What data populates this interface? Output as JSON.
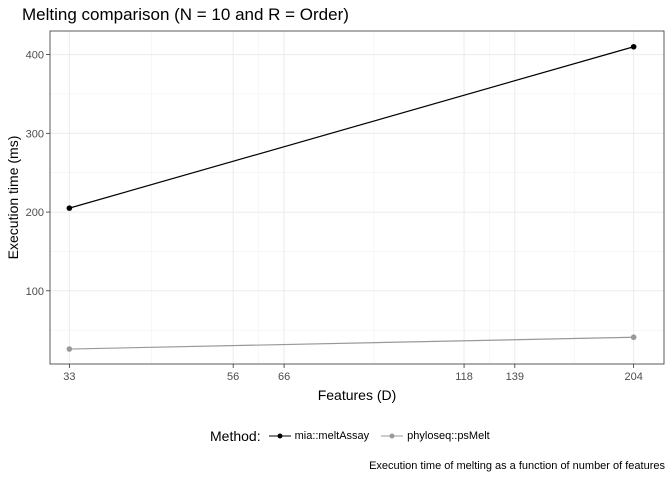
{
  "chart_data": {
    "type": "line",
    "title": "Melting comparison (N = 10 and R = Order)",
    "xlabel": "Features (D)",
    "ylabel": "Execution time (ms)",
    "x_scale": "log",
    "x_ticks": [
      33,
      56,
      66,
      118,
      139,
      204
    ],
    "x": [
      33,
      204
    ],
    "xlim": [
      31,
      225
    ],
    "y_ticks": [
      100,
      200,
      300,
      400
    ],
    "ylim": [
      7,
      430
    ],
    "grid": true,
    "legend_title": "Method:",
    "legend_position": "bottom",
    "series": [
      {
        "name": "mia::meltAssay",
        "values": [
          205,
          410
        ],
        "color": "#000000"
      },
      {
        "name": "phyloseq::psMelt",
        "values": [
          26,
          41
        ],
        "color": "#999999"
      }
    ],
    "caption": "Execution time of melting as a function of number of features"
  }
}
